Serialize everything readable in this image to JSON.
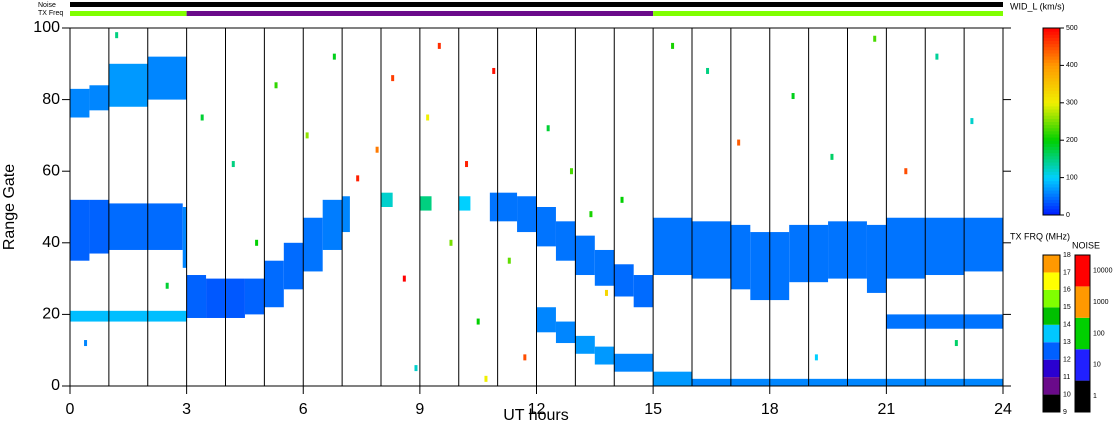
{
  "chart_data": {
    "type": "range-time",
    "xlabel": "UT hours",
    "ylabel": "Range Gate",
    "xlim": [
      0,
      24
    ],
    "xticks": [
      0,
      3,
      6,
      9,
      12,
      15,
      18,
      21,
      24
    ],
    "hour_lines": [
      1,
      2,
      3,
      4,
      5,
      6,
      7,
      8,
      9,
      10,
      11,
      12,
      13,
      14,
      15,
      16,
      17,
      18,
      19,
      20,
      21,
      22,
      23
    ],
    "ylim": [
      0,
      100
    ],
    "yticks": [
      0,
      20,
      40,
      60,
      80,
      100
    ],
    "noise_label": "Noise",
    "freq_label": "TX Freq",
    "noise_segments": [
      {
        "t0": 0,
        "t1": 24,
        "value": 1
      }
    ],
    "freq_segments": [
      {
        "t0": 0,
        "t1": 3,
        "value": 15
      },
      {
        "t0": 3,
        "t1": 15,
        "value": 10
      },
      {
        "t0": 15,
        "t1": 24,
        "value": 15
      }
    ],
    "width_colorbar": {
      "label": "WID_L (km/s)",
      "lim": [
        0,
        500
      ],
      "ticks": [
        0,
        100,
        200,
        300,
        400,
        500
      ],
      "colors": [
        "#0018ff",
        "#00d0ff",
        "#00d000",
        "#f0f000",
        "#ff9900",
        "#ff0000"
      ]
    },
    "freq_colorbar": {
      "label": "TX FRQ (MHz)",
      "lim": [
        9,
        18
      ],
      "ticks": [
        9,
        10,
        11,
        12,
        13,
        14,
        15,
        16,
        17,
        18
      ],
      "colors": [
        "#000000",
        "#6a0a8a",
        "#2a00d0",
        "#0060ff",
        "#00c8ff",
        "#00c000",
        "#80ff00",
        "#ffff00",
        "#ff9900",
        "#ff0000"
      ]
    },
    "noise_colorbar": {
      "label": "NOISE",
      "ticks": [
        1,
        10,
        100,
        1000,
        10000
      ],
      "colors": [
        "#000000",
        "#2020ff",
        "#00d000",
        "#ff9900",
        "#ff0000"
      ]
    },
    "echoes": [
      {
        "t0": 0,
        "t1": 0.5,
        "g0": 35,
        "g1": 52,
        "w": 40
      },
      {
        "t0": 0.5,
        "t1": 1,
        "g0": 37,
        "g1": 52,
        "w": 40
      },
      {
        "t0": 1,
        "t1": 2,
        "g0": 38,
        "g1": 51,
        "w": 45
      },
      {
        "t0": 2,
        "t1": 2.9,
        "g0": 38,
        "g1": 51,
        "w": 45
      },
      {
        "t0": 2.9,
        "t1": 3,
        "g0": 33,
        "g1": 50,
        "w": 60
      },
      {
        "t0": 3,
        "t1": 3.5,
        "g0": 19,
        "g1": 31,
        "w": 40
      },
      {
        "t0": 3.5,
        "t1": 4.5,
        "g0": 19,
        "g1": 30,
        "w": 35
      },
      {
        "t0": 4.5,
        "t1": 5,
        "g0": 20,
        "g1": 30,
        "w": 40
      },
      {
        "t0": 5,
        "t1": 5.5,
        "g0": 22,
        "g1": 35,
        "w": 45
      },
      {
        "t0": 5.5,
        "t1": 6,
        "g0": 27,
        "g1": 40,
        "w": 45
      },
      {
        "t0": 6,
        "t1": 6.5,
        "g0": 32,
        "g1": 47,
        "w": 50
      },
      {
        "t0": 6.5,
        "t1": 7,
        "g0": 38,
        "g1": 52,
        "w": 55
      },
      {
        "t0": 7,
        "t1": 7.2,
        "g0": 43,
        "g1": 53,
        "w": 60
      },
      {
        "t0": 10.8,
        "t1": 11.5,
        "g0": 46,
        "g1": 54,
        "w": 50
      },
      {
        "t0": 11.5,
        "t1": 12,
        "g0": 43,
        "g1": 53,
        "w": 50
      },
      {
        "t0": 12,
        "t1": 12.5,
        "g0": 39,
        "g1": 50,
        "w": 50
      },
      {
        "t0": 12.5,
        "t1": 13,
        "g0": 35,
        "g1": 46,
        "w": 50
      },
      {
        "t0": 13,
        "t1": 13.5,
        "g0": 31,
        "g1": 42,
        "w": 50
      },
      {
        "t0": 13.5,
        "t1": 14,
        "g0": 28,
        "g1": 38,
        "w": 50
      },
      {
        "t0": 14,
        "t1": 14.5,
        "g0": 25,
        "g1": 34,
        "w": 45
      },
      {
        "t0": 14.5,
        "t1": 15,
        "g0": 22,
        "g1": 31,
        "w": 45
      },
      {
        "t0": 15,
        "t1": 16,
        "g0": 31,
        "g1": 47,
        "w": 50
      },
      {
        "t0": 16,
        "t1": 17,
        "g0": 30,
        "g1": 46,
        "w": 50
      },
      {
        "t0": 17,
        "t1": 17.5,
        "g0": 27,
        "g1": 45,
        "w": 50
      },
      {
        "t0": 17.5,
        "t1": 18.5,
        "g0": 24,
        "g1": 43,
        "w": 50
      },
      {
        "t0": 18.5,
        "t1": 19.5,
        "g0": 29,
        "g1": 45,
        "w": 50
      },
      {
        "t0": 19.5,
        "t1": 20.5,
        "g0": 30,
        "g1": 46,
        "w": 50
      },
      {
        "t0": 20.5,
        "t1": 21,
        "g0": 26,
        "g1": 45,
        "w": 50
      },
      {
        "t0": 21,
        "t1": 22,
        "g0": 30,
        "g1": 47,
        "w": 50
      },
      {
        "t0": 22,
        "t1": 23,
        "g0": 31,
        "g1": 47,
        "w": 50
      },
      {
        "t0": 23,
        "t1": 24,
        "g0": 32,
        "g1": 47,
        "w": 50
      },
      {
        "t0": 0,
        "t1": 0.5,
        "g0": 75,
        "g1": 83,
        "w": 60
      },
      {
        "t0": 0.5,
        "t1": 1,
        "g0": 77,
        "g1": 84,
        "w": 60
      },
      {
        "t0": 1,
        "t1": 2,
        "g0": 78,
        "g1": 90,
        "w": 70
      },
      {
        "t0": 2,
        "t1": 3,
        "g0": 80,
        "g1": 92,
        "w": 60
      },
      {
        "t0": 8,
        "t1": 8.3,
        "g0": 50,
        "g1": 54,
        "w": 120
      },
      {
        "t0": 9,
        "t1": 9.3,
        "g0": 49,
        "g1": 53,
        "w": 150
      },
      {
        "t0": 10,
        "t1": 10.3,
        "g0": 49,
        "g1": 53,
        "w": 100
      },
      {
        "t0": 12,
        "t1": 12.5,
        "g0": 15,
        "g1": 22,
        "w": 60
      },
      {
        "t0": 12.5,
        "t1": 13,
        "g0": 12,
        "g1": 18,
        "w": 60
      },
      {
        "t0": 13,
        "t1": 13.5,
        "g0": 9,
        "g1": 14,
        "w": 70
      },
      {
        "t0": 13.5,
        "t1": 14,
        "g0": 6,
        "g1": 11,
        "w": 70
      },
      {
        "t0": 14,
        "t1": 15,
        "g0": 4,
        "g1": 9,
        "w": 60
      },
      {
        "t0": 15,
        "t1": 16,
        "g0": 0,
        "g1": 4,
        "w": 70
      },
      {
        "t0": 16,
        "t1": 24,
        "g0": 0,
        "g1": 2,
        "w": 60
      },
      {
        "t0": 0,
        "t1": 3,
        "g0": 18,
        "g1": 21,
        "w": 90
      },
      {
        "t0": 21,
        "t1": 24,
        "g0": 16,
        "g1": 20,
        "w": 50
      }
    ],
    "points": [
      {
        "t": 3.4,
        "g": 75,
        "w": 180
      },
      {
        "t": 4.2,
        "g": 62,
        "w": 150
      },
      {
        "t": 4.8,
        "g": 40,
        "w": 200
      },
      {
        "t": 5.3,
        "g": 84,
        "w": 220
      },
      {
        "t": 6.1,
        "g": 70,
        "w": 260
      },
      {
        "t": 6.8,
        "g": 92,
        "w": 190
      },
      {
        "t": 7.4,
        "g": 58,
        "w": 480
      },
      {
        "t": 7.9,
        "g": 66,
        "w": 420
      },
      {
        "t": 8.3,
        "g": 86,
        "w": 460
      },
      {
        "t": 8.6,
        "g": 30,
        "w": 500
      },
      {
        "t": 9.2,
        "g": 75,
        "w": 300
      },
      {
        "t": 9.5,
        "g": 95,
        "w": 470
      },
      {
        "t": 9.8,
        "g": 40,
        "w": 250
      },
      {
        "t": 10.2,
        "g": 62,
        "w": 480
      },
      {
        "t": 10.5,
        "g": 18,
        "w": 200
      },
      {
        "t": 10.9,
        "g": 88,
        "w": 490
      },
      {
        "t": 11.3,
        "g": 35,
        "w": 240
      },
      {
        "t": 11.7,
        "g": 8,
        "w": 450
      },
      {
        "t": 12.3,
        "g": 72,
        "w": 180
      },
      {
        "t": 12.9,
        "g": 60,
        "w": 230
      },
      {
        "t": 13.4,
        "g": 48,
        "w": 210
      },
      {
        "t": 13.8,
        "g": 26,
        "w": 330
      },
      {
        "t": 14.2,
        "g": 52,
        "w": 200
      },
      {
        "t": 15.5,
        "g": 95,
        "w": 210
      },
      {
        "t": 16.4,
        "g": 88,
        "w": 150
      },
      {
        "t": 17.2,
        "g": 68,
        "w": 440
      },
      {
        "t": 18.6,
        "g": 81,
        "w": 190
      },
      {
        "t": 19.6,
        "g": 64,
        "w": 160
      },
      {
        "t": 20.7,
        "g": 97,
        "w": 230
      },
      {
        "t": 21.5,
        "g": 60,
        "w": 450
      },
      {
        "t": 22.3,
        "g": 92,
        "w": 140
      },
      {
        "t": 23.2,
        "g": 74,
        "w": 120
      },
      {
        "t": 1.2,
        "g": 98,
        "w": 150
      },
      {
        "t": 0.4,
        "g": 12,
        "w": 60
      },
      {
        "t": 2.5,
        "g": 28,
        "w": 180
      },
      {
        "t": 8.9,
        "g": 5,
        "w": 120
      },
      {
        "t": 10.7,
        "g": 2,
        "w": 300
      },
      {
        "t": 19.2,
        "g": 8,
        "w": 100
      },
      {
        "t": 22.8,
        "g": 12,
        "w": 160
      }
    ]
  }
}
